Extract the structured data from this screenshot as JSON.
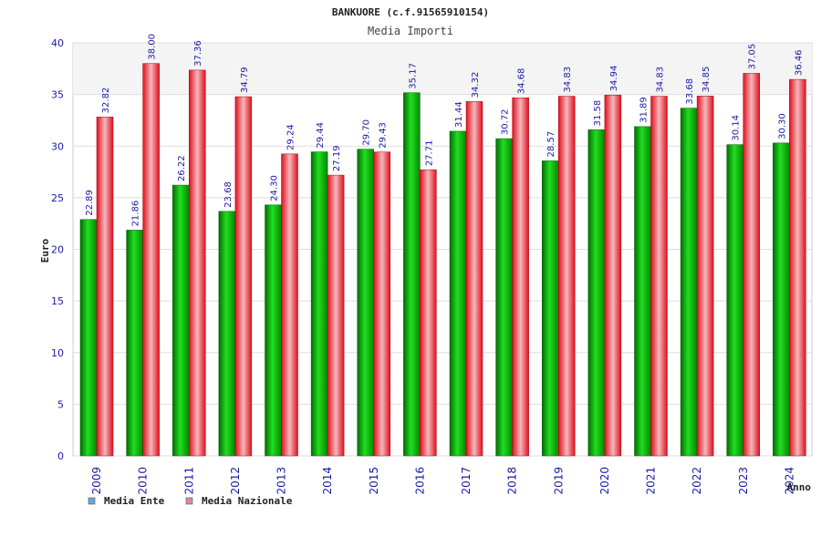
{
  "chart_data": {
    "type": "bar",
    "title": "BANKUORE (c.f.91565910154)",
    "subtitle": "Media Importi",
    "xlabel": "Anno",
    "ylabel": "Euro",
    "ylim": [
      0,
      40
    ],
    "yticks": [
      0,
      5,
      10,
      15,
      20,
      25,
      30,
      35,
      40
    ],
    "grid": true,
    "legend_position": "bottom-left",
    "categories": [
      "2009",
      "2010",
      "2011",
      "2012",
      "2013",
      "2014",
      "2015",
      "2016",
      "2017",
      "2018",
      "2019",
      "2020",
      "2021",
      "2022",
      "2023",
      "2024"
    ],
    "series": [
      {
        "name": "Media Ente",
        "legend_color": "#66aadd",
        "bar_color": "#00b000",
        "values": [
          22.89,
          21.86,
          26.22,
          23.68,
          24.3,
          29.44,
          29.7,
          35.17,
          31.44,
          30.72,
          28.57,
          31.58,
          31.89,
          33.68,
          30.14,
          30.3
        ],
        "labels": [
          "22.89",
          "21.86",
          "26.22",
          "23.68",
          "24.30",
          "29.44",
          "29.70",
          "35.17",
          "31.44",
          "30.72",
          "28.57",
          "31.58",
          "31.89",
          "33.68",
          "30.14",
          "30.30"
        ]
      },
      {
        "name": "Media Nazionale",
        "legend_color": "#dd88aa",
        "bar_color": "#e0202a",
        "values": [
          32.82,
          38.0,
          37.36,
          34.79,
          29.24,
          27.19,
          29.43,
          27.71,
          34.32,
          34.68,
          34.83,
          34.94,
          34.83,
          34.85,
          37.05,
          36.46
        ],
        "labels": [
          "32.82",
          "38.00",
          "37.36",
          "34.79",
          "29.24",
          "27.19",
          "29.43",
          "27.71",
          "34.32",
          "34.68",
          "34.83",
          "34.94",
          "34.83",
          "34.85",
          "37.05",
          "36.46"
        ]
      }
    ]
  }
}
